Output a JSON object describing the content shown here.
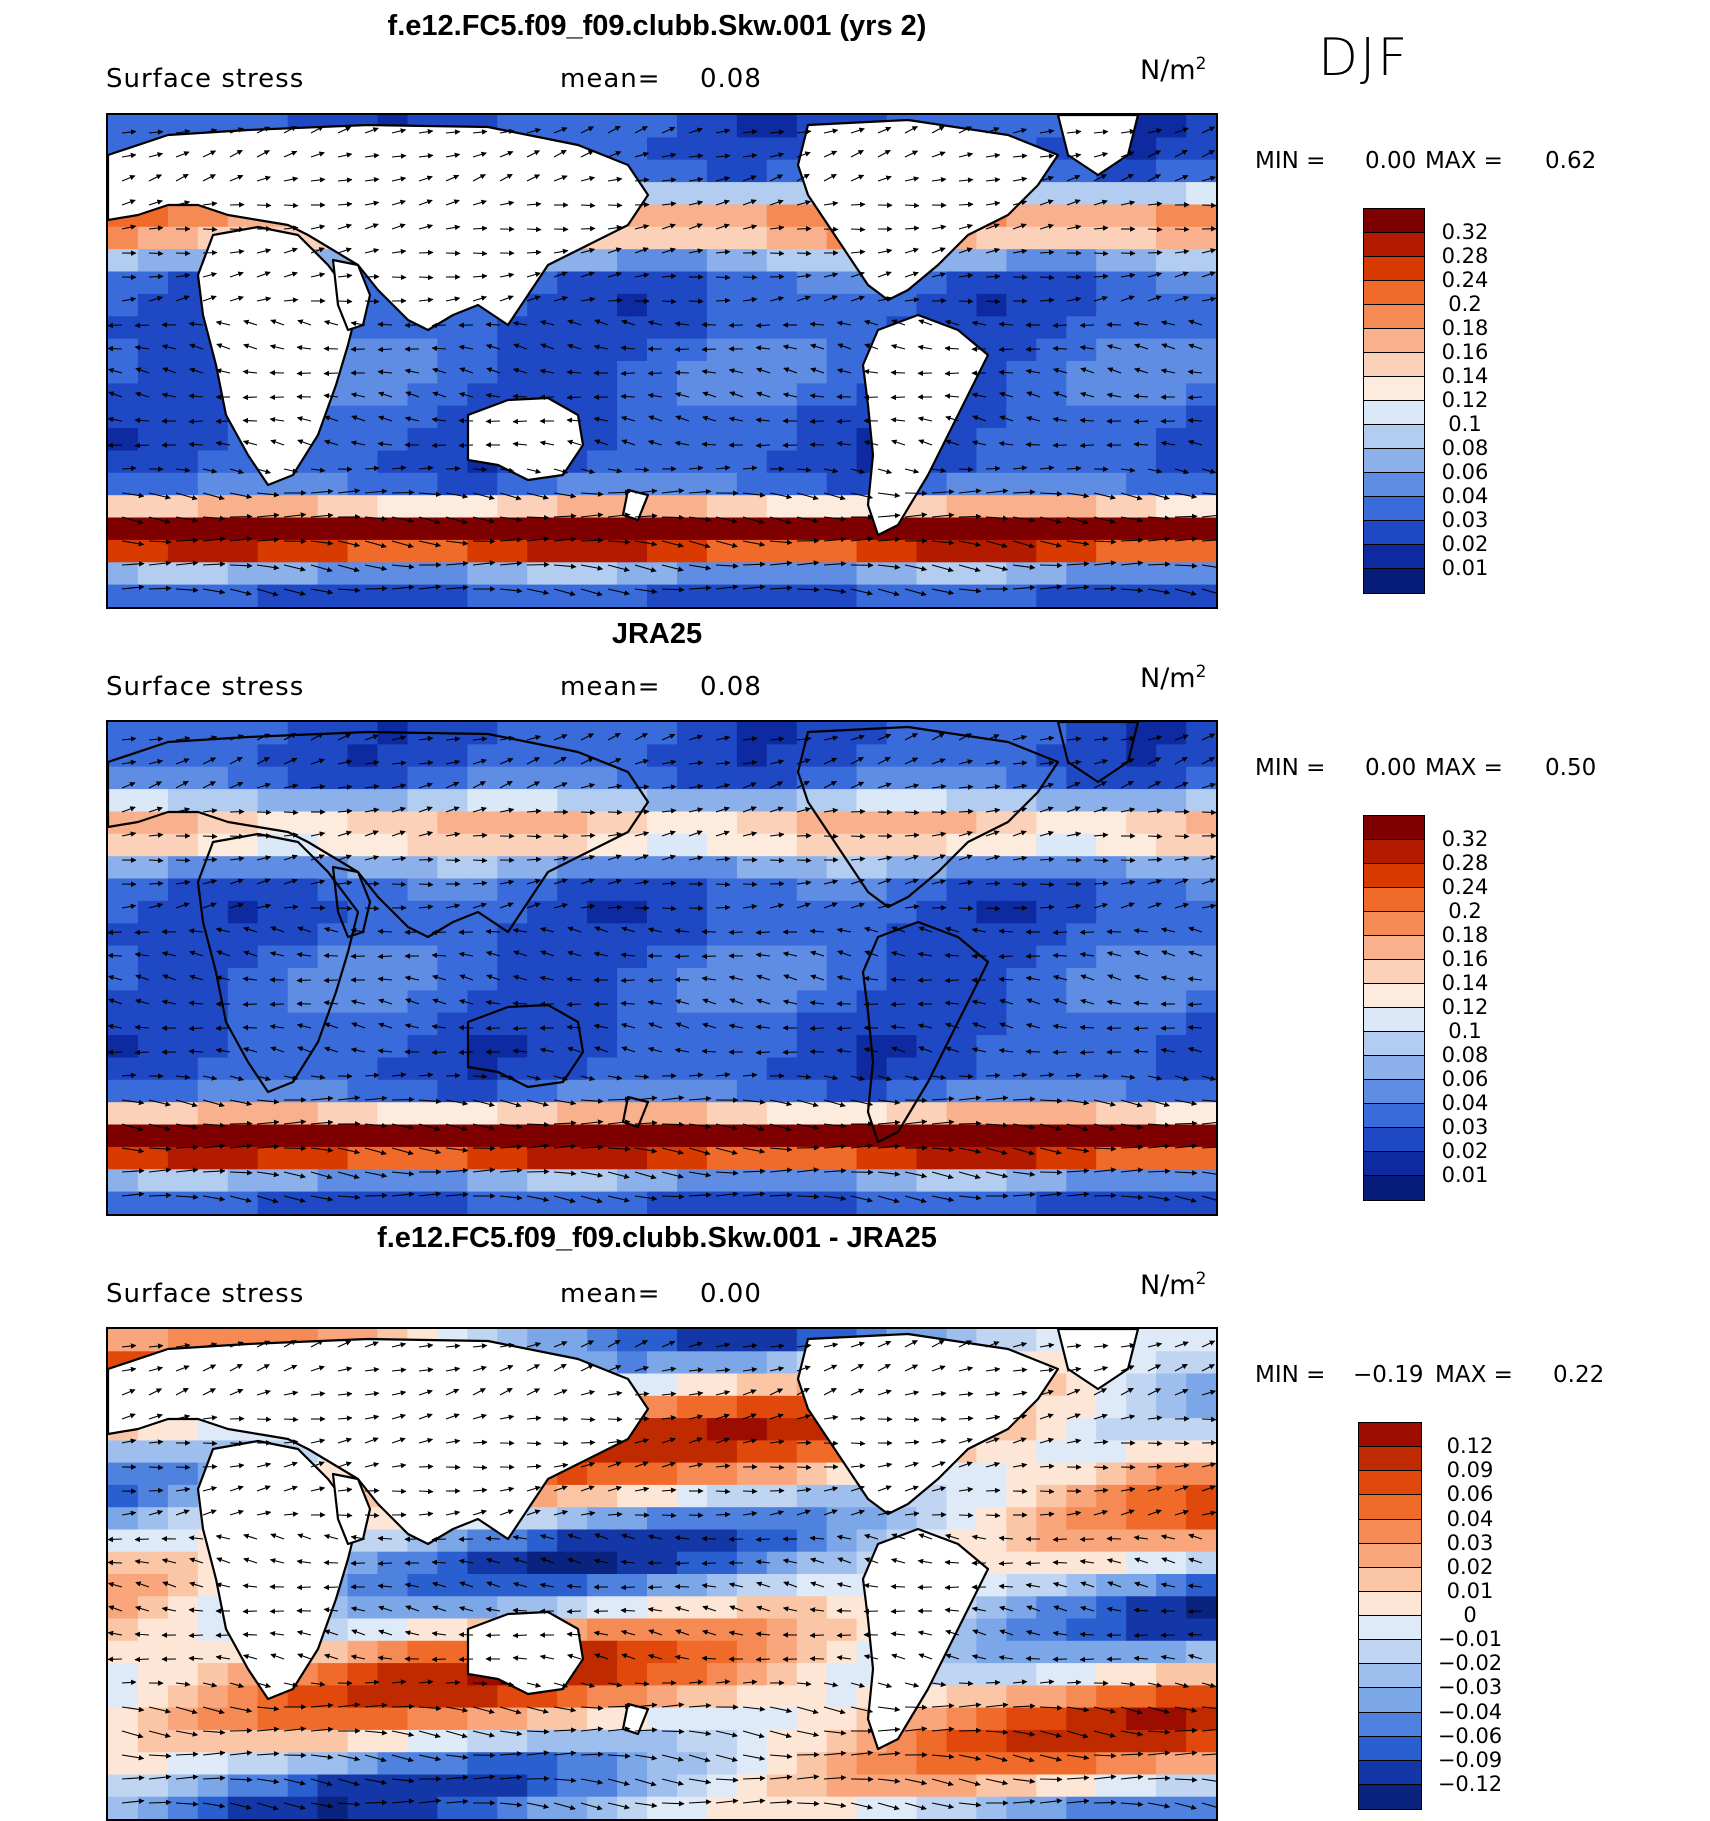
{
  "season": "DJF",
  "panels": [
    {
      "title": "f.e12.FC5.f09_f09.clubb.Skw.001 (yrs 2)",
      "variable": "Surface stress",
      "mean_label": "mean=",
      "mean_value": "0.08",
      "units": "N/m",
      "units_sup": "2",
      "min_label": "MIN =",
      "min_value": "0.00",
      "max_label": "MAX =",
      "max_value": "0.62",
      "levels": [
        "0.32",
        "0.28",
        "0.24",
        "0.2",
        "0.18",
        "0.16",
        "0.14",
        "0.12",
        "0.1",
        "0.08",
        "0.06",
        "0.04",
        "0.03",
        "0.02",
        "0.01"
      ],
      "colors": [
        "#7f0000",
        "#b31b00",
        "#d93a00",
        "#f06a2a",
        "#f58a54",
        "#f9b08d",
        "#fbd2b9",
        "#fdecde",
        "#dbe8f8",
        "#b3cdf0",
        "#8bb0ea",
        "#5f8de3",
        "#3a6bdb",
        "#1f48c4",
        "#0e2aa0",
        "#071b7a"
      ]
    },
    {
      "title": "JRA25",
      "variable": "Surface stress",
      "mean_label": "mean=",
      "mean_value": "0.08",
      "units": "N/m",
      "units_sup": "2",
      "min_label": "MIN =",
      "min_value": "0.00",
      "max_label": "MAX =",
      "max_value": "0.50",
      "levels": [
        "0.32",
        "0.28",
        "0.24",
        "0.2",
        "0.18",
        "0.16",
        "0.14",
        "0.12",
        "0.1",
        "0.08",
        "0.06",
        "0.04",
        "0.03",
        "0.02",
        "0.01"
      ],
      "colors": [
        "#7f0000",
        "#b31b00",
        "#d93a00",
        "#f06a2a",
        "#f58a54",
        "#f9b08d",
        "#fbd2b9",
        "#fdecde",
        "#dbe8f8",
        "#b3cdf0",
        "#8bb0ea",
        "#5f8de3",
        "#3a6bdb",
        "#1f48c4",
        "#0e2aa0",
        "#071b7a"
      ]
    },
    {
      "title": "f.e12.FC5.f09_f09.clubb.Skw.001 - JRA25",
      "variable": "Surface stress",
      "mean_label": "mean=",
      "mean_value": "0.00",
      "units": "N/m",
      "units_sup": "2",
      "min_label": "MIN =",
      "min_value": "−0.19",
      "max_label": "MAX =",
      "max_value": "0.22",
      "levels": [
        "0.12",
        "0.09",
        "0.06",
        "0.04",
        "0.03",
        "0.02",
        "0.01",
        "0",
        "−0.01",
        "−0.02",
        "−0.03",
        "−0.04",
        "−0.06",
        "−0.09",
        "−0.12"
      ],
      "colors": [
        "#9c0c00",
        "#c02a00",
        "#e0490b",
        "#f06a2a",
        "#f58a54",
        "#f9a67c",
        "#fbc6a6",
        "#fde6d6",
        "#dfeaf8",
        "#bfd5f2",
        "#9ebfee",
        "#7ba6e8",
        "#4e82de",
        "#2a5fd0",
        "#1437a8",
        "#0a237e"
      ]
    }
  ]
}
